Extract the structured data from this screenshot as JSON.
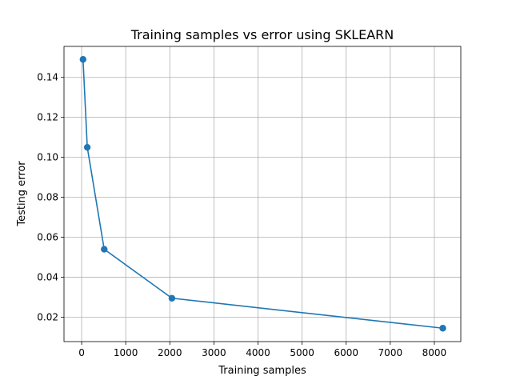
{
  "chart_data": {
    "type": "line",
    "title": "Training samples vs error using SKLEARN",
    "xlabel": "Training samples",
    "ylabel": "Testing error",
    "xlim": [
      -400,
      8600
    ],
    "ylim": [
      0.0078,
      0.1555
    ],
    "x_ticks": [
      0,
      1000,
      2000,
      3000,
      4000,
      5000,
      6000,
      7000,
      8000
    ],
    "y_ticks": [
      0.02,
      0.04,
      0.06,
      0.08,
      0.1,
      0.12,
      0.14
    ],
    "y_tick_labels": [
      "0.02",
      "0.04",
      "0.06",
      "0.08",
      "0.10",
      "0.12",
      "0.14"
    ],
    "grid": true,
    "series": [
      {
        "color": "#1f77b4",
        "marker": "circle",
        "x": [
          32,
          128,
          512,
          2048,
          8192
        ],
        "y": [
          0.149,
          0.105,
          0.054,
          0.0295,
          0.0145
        ]
      }
    ]
  }
}
